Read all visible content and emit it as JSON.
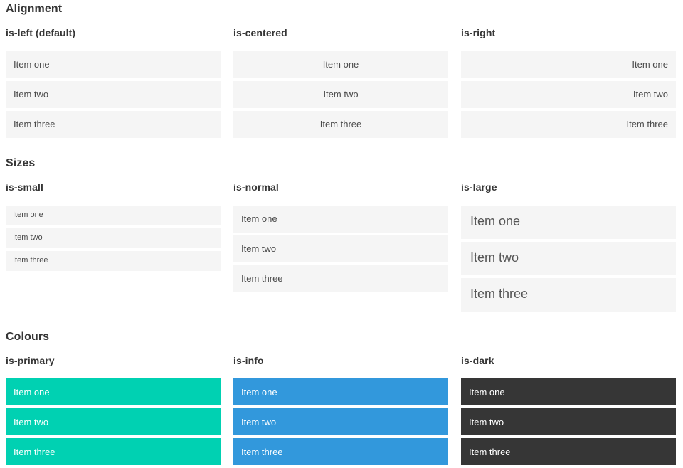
{
  "page": {
    "colors": {
      "primary": "#00d1b2",
      "info": "#3298dc",
      "dark": "#363636",
      "item_bg": "#f5f5f5",
      "item_text": "#4a4a4a",
      "heading_text": "#363636"
    },
    "sections": [
      {
        "title": "Alignment",
        "columns": [
          {
            "label": "is-left (default)",
            "variant": "left",
            "items": [
              "Item one",
              "Item two",
              "Item three"
            ]
          },
          {
            "label": "is-centered",
            "variant": "centered",
            "items": [
              "Item one",
              "Item two",
              "Item three"
            ]
          },
          {
            "label": "is-right",
            "variant": "right",
            "items": [
              "Item one",
              "Item two",
              "Item three"
            ]
          }
        ]
      },
      {
        "title": "Sizes",
        "columns": [
          {
            "label": "is-small",
            "variant": "small",
            "items": [
              "Item one",
              "Item two",
              "Item three"
            ]
          },
          {
            "label": "is-normal",
            "variant": "normal",
            "items": [
              "Item one",
              "Item two",
              "Item three"
            ]
          },
          {
            "label": "is-large",
            "variant": "large",
            "items": [
              "Item one",
              "Item two",
              "Item three"
            ]
          }
        ]
      },
      {
        "title": "Colours",
        "columns": [
          {
            "label": "is-primary",
            "variant": "primary",
            "items": [
              "Item one",
              "Item two",
              "Item three"
            ]
          },
          {
            "label": "is-info",
            "variant": "info",
            "items": [
              "Item one",
              "Item two",
              "Item three"
            ]
          },
          {
            "label": "is-dark",
            "variant": "dark",
            "items": [
              "Item one",
              "Item two",
              "Item three"
            ]
          }
        ]
      }
    ]
  }
}
